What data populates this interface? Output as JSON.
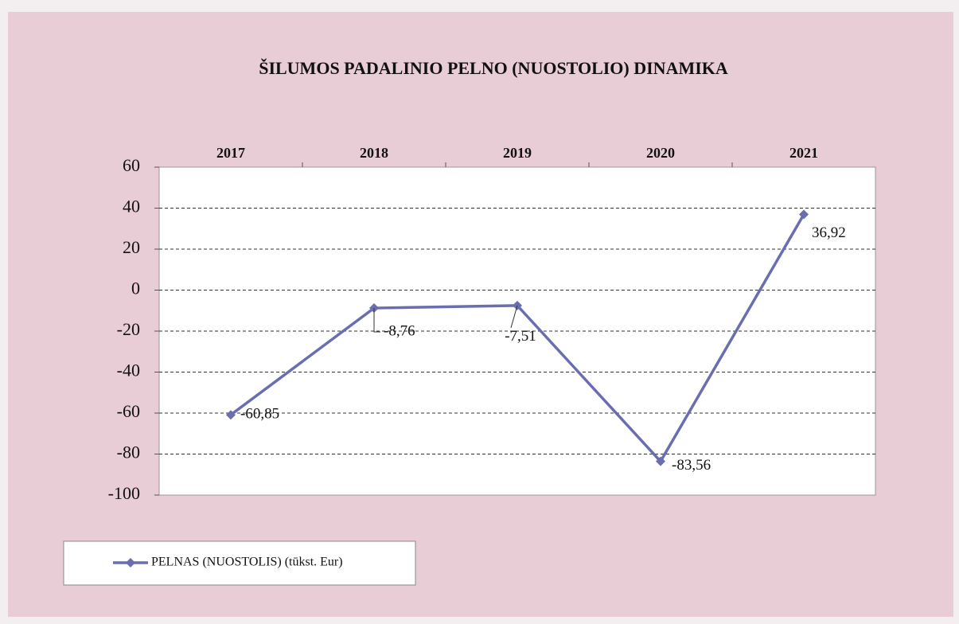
{
  "chart_data": {
    "type": "line",
    "title": "ŠILUMOS PADALINIO PELNO (NUOSTOLIO) DINAMIKA",
    "categories": [
      "2017",
      "2018",
      "2019",
      "2020",
      "2021"
    ],
    "series": [
      {
        "name": "PELNAS (NUOSTOLIS) (tūkst. Eur)",
        "color": "#6a6eb0",
        "values": [
          -60.85,
          -8.76,
          -7.51,
          -83.56,
          36.92
        ],
        "value_labels": [
          "-60,85",
          "-8,76",
          "-7,51",
          "-83,56",
          "36,92"
        ]
      }
    ],
    "ylim": [
      -100,
      60
    ],
    "yticks": [
      -100,
      -80,
      -60,
      -40,
      -20,
      0,
      20,
      40,
      60
    ],
    "grid": true,
    "legend": "bottom-left"
  }
}
